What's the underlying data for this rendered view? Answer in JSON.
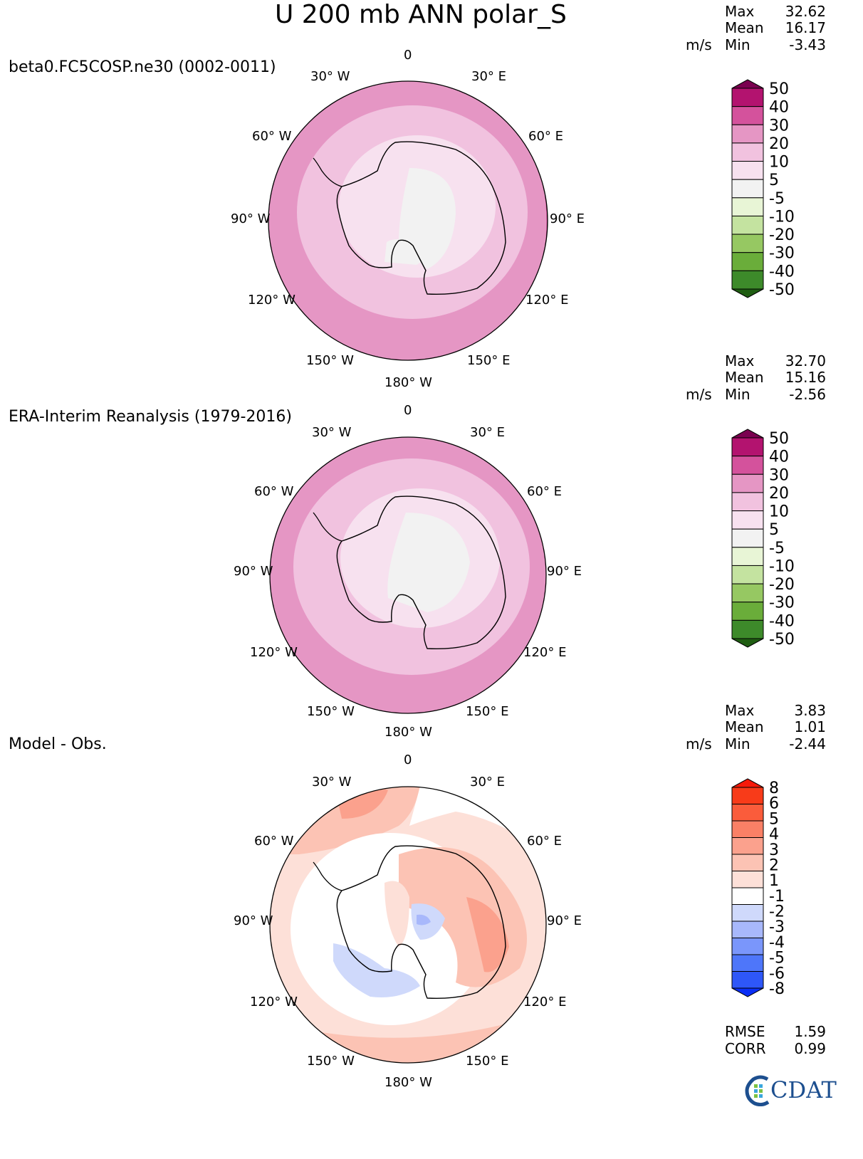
{
  "header": {
    "title": "U 200 mb ANN polar_S"
  },
  "logo": {
    "text": "CDAT"
  },
  "colors": {
    "main_levels": [
      "#1f5d12",
      "#3d8a2a",
      "#6aad3a",
      "#96c862",
      "#c4e3a0",
      "#e8f5d6",
      "#f2f2f2",
      "#f7e1ef",
      "#f1c2df",
      "#e596c4",
      "#d4529c",
      "#b3136f",
      "#7a0150"
    ],
    "diff_levels": [
      "#0a2ef5",
      "#2e57f8",
      "#4e76fa",
      "#7a96fb",
      "#a8b8fb",
      "#cfd9fb",
      "#ffffff",
      "#fde0d8",
      "#fcc3b4",
      "#fba18d",
      "#fa8066",
      "#fa5c3b",
      "#f83b19",
      "#f61a0a"
    ]
  },
  "panels": [
    {
      "id": "test",
      "label": "beta0.FC5COSP.ne30 (0002-0011)",
      "units": "m/s",
      "stats": {
        "max_label": "Max",
        "max": "32.62",
        "mean_label": "Mean",
        "mean": "16.17",
        "min_label": "Min",
        "min": "-3.43"
      },
      "colorbar_labels": [
        "50",
        "40",
        "30",
        "20",
        "10",
        "5",
        "-5",
        "-10",
        "-20",
        "-30",
        "-40",
        "-50"
      ]
    },
    {
      "id": "ref",
      "label": "ERA-Interim Reanalysis (1979-2016)",
      "units": "m/s",
      "stats": {
        "max_label": "Max",
        "max": "32.70",
        "mean_label": "Mean",
        "mean": "15.16",
        "min_label": "Min",
        "min": "-2.56"
      },
      "colorbar_labels": [
        "50",
        "40",
        "30",
        "20",
        "10",
        "5",
        "-5",
        "-10",
        "-20",
        "-30",
        "-40",
        "-50"
      ]
    },
    {
      "id": "diff",
      "label": "Model - Obs.",
      "units": "m/s",
      "stats": {
        "max_label": "Max",
        "max": "3.83",
        "mean_label": "Mean",
        "mean": "1.01",
        "min_label": "Min",
        "min": "-2.44"
      },
      "colorbar_labels": [
        "8",
        "6",
        "5",
        "4",
        "3",
        "2",
        "1",
        "-1",
        "-2",
        "-3",
        "-4",
        "-5",
        "-6",
        "-8"
      ],
      "metrics": {
        "rmse_label": "RMSE",
        "rmse": "1.59",
        "corr_label": "CORR",
        "corr": "0.99"
      }
    }
  ],
  "lon_labels": {
    "top": "0",
    "w30": "30° W",
    "e30": "30° E",
    "w60": "60° W",
    "e60": "60° E",
    "w90": "90° W",
    "e90": "90° E",
    "w120": "120° W",
    "e120": "120° E",
    "w150": "150° W",
    "e150": "150° E",
    "bottom": "180° W"
  }
}
